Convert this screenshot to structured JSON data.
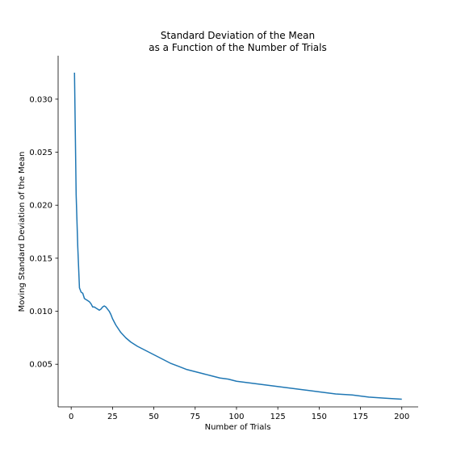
{
  "chart_data": {
    "type": "line",
    "title_lines": [
      "Standard Deviation of the Mean",
      "as a Function of the Number of Trials"
    ],
    "xlabel": "Number of Trials",
    "ylabel": "Moving Standard Deviation of the Mean",
    "xlim": [
      -7.9,
      209.9
    ],
    "ylim": [
      0.00098,
      0.0341
    ],
    "x_ticks": [
      0,
      25,
      50,
      75,
      100,
      125,
      150,
      175,
      200
    ],
    "y_ticks": [
      0.005,
      0.01,
      0.015,
      0.02,
      0.025,
      0.03
    ],
    "x_tick_labels": [
      "0",
      "25",
      "50",
      "75",
      "100",
      "125",
      "150",
      "175",
      "200"
    ],
    "y_tick_labels": [
      "0.005",
      "0.010",
      "0.015",
      "0.020",
      "0.025",
      "0.030"
    ],
    "spines": [
      "left",
      "bottom"
    ],
    "grid": false,
    "series": [
      {
        "color": "#1f77b4",
        "x": [
          2,
          3,
          4,
          5,
          6,
          7,
          8,
          9,
          10,
          11,
          12,
          13,
          14,
          15,
          16,
          17,
          18,
          19,
          20,
          21,
          22,
          23,
          24,
          25,
          27,
          30,
          33,
          36,
          38,
          40,
          45,
          50,
          55,
          60,
          65,
          70,
          75,
          80,
          85,
          90,
          95,
          100,
          110,
          120,
          130,
          140,
          150,
          160,
          170,
          180,
          190,
          200
        ],
        "y": [
          0.0325,
          0.021,
          0.016,
          0.0122,
          0.0118,
          0.0117,
          0.0112,
          0.0111,
          0.011,
          0.0109,
          0.0107,
          0.0104,
          0.0104,
          0.0103,
          0.0102,
          0.0101,
          0.0102,
          0.0104,
          0.0105,
          0.0104,
          0.0102,
          0.01,
          0.0097,
          0.0093,
          0.0087,
          0.008,
          0.0075,
          0.0071,
          0.0069,
          0.0067,
          0.0063,
          0.0059,
          0.0055,
          0.0051,
          0.0048,
          0.0045,
          0.0043,
          0.0041,
          0.0039,
          0.0037,
          0.0036,
          0.0034,
          0.0032,
          0.003,
          0.0028,
          0.0026,
          0.0024,
          0.0022,
          0.0021,
          0.0019,
          0.0018,
          0.0017
        ]
      }
    ]
  }
}
